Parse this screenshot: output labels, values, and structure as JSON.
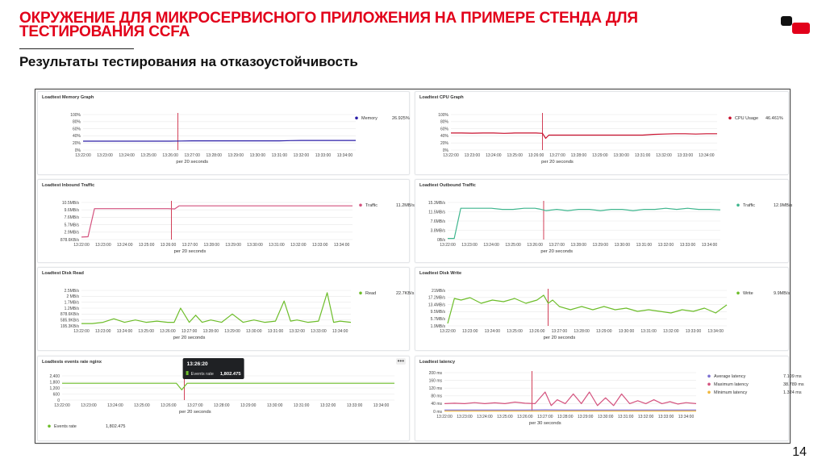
{
  "slide": {
    "title": "ОКРУЖЕНИЕ ДЛЯ МИКРОСЕРВИСНОГО ПРИЛОЖЕНИЯ НА ПРИМЕРЕ СТЕНДА ДЛЯ ТЕСТИРОВАНИЯ CCFA",
    "subtitle": "Результаты тестирования на отказоустойчивость",
    "page_number": "14"
  },
  "colors": {
    "title": "#e2001a",
    "memory": "#2c1fa8",
    "cpu": "#c8102e",
    "inbound": "#d4527e",
    "outbound": "#3fb68e",
    "disk": "#6dbd2a",
    "avg": "#7b6fd0",
    "max": "#d4527e",
    "min": "#f0b73c"
  },
  "chart_data": [
    {
      "id": "memory",
      "type": "line",
      "title": "Loadtest Memory Graph",
      "xlabel": "per 20 seconds",
      "yticks": [
        "100%",
        "80%",
        "60%",
        "40%",
        "20%",
        "0%"
      ],
      "ylim": [
        0,
        100
      ],
      "xticks": [
        "13:22:00",
        "13:23:00",
        "13:24:00",
        "13:25:00",
        "13:26:00",
        "13:27:00",
        "13:28:00",
        "13:29:00",
        "13:30:00",
        "13:31:00",
        "13:32:00",
        "13:33:00",
        "13:34:00"
      ],
      "marker": 4.35,
      "series": [
        {
          "name": "Memory",
          "value_label": "26.925%",
          "color": "#2c1fa8",
          "x": [
            0,
            0.5,
            1,
            1.5,
            2,
            2.5,
            3,
            3.5,
            4,
            4.5,
            5,
            5.5,
            6,
            6.5,
            7,
            7.5,
            8,
            8.5,
            9,
            9.5,
            10,
            10.5,
            11,
            11.5,
            12,
            12.5
          ],
          "y": [
            25,
            25,
            25,
            25,
            25,
            25,
            25,
            25,
            25,
            25.5,
            26,
            26,
            26,
            26,
            26,
            26,
            26,
            26,
            26,
            26.5,
            27,
            27,
            27,
            27,
            27,
            27
          ]
        }
      ]
    },
    {
      "id": "cpu",
      "type": "line",
      "title": "Loadtest CPU Graph",
      "xlabel": "per 20 seconds",
      "yticks": [
        "100%",
        "80%",
        "60%",
        "40%",
        "20%",
        "0%"
      ],
      "ylim": [
        0,
        100
      ],
      "xticks": [
        "13:22:00",
        "13:23:00",
        "13:24:00",
        "13:25:00",
        "13:26:00",
        "13:27:00",
        "13:28:00",
        "13:29:00",
        "13:30:00",
        "13:31:00",
        "13:32:00",
        "13:33:00",
        "13:34:00"
      ],
      "marker": 4.3,
      "series": [
        {
          "name": "CPU Usage",
          "value_label": "46.461%",
          "color": "#c8102e",
          "x": [
            0,
            0.5,
            1,
            1.5,
            2,
            2.5,
            3,
            3.5,
            4,
            4.3,
            4.45,
            4.6,
            5,
            5.5,
            6,
            6.5,
            7,
            7.5,
            8,
            8.5,
            9,
            9.5,
            10,
            10.5,
            11,
            11.5,
            12,
            12.5
          ],
          "y": [
            48,
            48,
            47.5,
            48,
            48,
            47,
            48,
            48,
            48,
            47,
            33,
            42,
            42,
            42,
            42,
            42,
            42,
            42,
            42,
            42,
            42,
            44,
            45,
            46,
            46,
            45,
            46,
            46
          ]
        }
      ]
    },
    {
      "id": "inbound",
      "type": "line",
      "title": "Loadtest Inbound Traffic",
      "xlabel": "per 20 seconds",
      "yticks": [
        "10.5MB/s",
        "9.6MB/s",
        "7.6MB/s",
        "5.7MB/s",
        "2.9MB/s",
        "878.6KB/s"
      ],
      "ylim": [
        0,
        12
      ],
      "xticks": [
        "13:22:00",
        "13:23:00",
        "13:24:00",
        "13:25:00",
        "13:26:00",
        "13:27:00",
        "13:28:00",
        "13:29:00",
        "13:30:00",
        "13:31:00",
        "13:32:00",
        "13:33:00",
        "13:34:00"
      ],
      "marker": 4.15,
      "series": [
        {
          "name": "Traffic",
          "value_label": "11.2MB/s",
          "color": "#d4527e",
          "x": [
            0,
            0.3,
            0.6,
            1,
            1.5,
            2,
            2.5,
            3,
            3.5,
            4,
            4.3,
            4.5,
            5,
            5.5,
            6,
            6.5,
            7,
            7.5,
            8,
            8.5,
            9,
            9.5,
            10,
            10.5,
            11,
            11.5,
            12,
            12.5
          ],
          "y": [
            0.8,
            0.9,
            10,
            10,
            10,
            10,
            10,
            10,
            10,
            10,
            9.9,
            10.9,
            10.9,
            10.9,
            10.9,
            10.9,
            10.9,
            10.9,
            10.9,
            10.9,
            10.9,
            10.9,
            10.9,
            10.9,
            10.9,
            10.9,
            10.9,
            10.9
          ]
        }
      ]
    },
    {
      "id": "outbound",
      "type": "line",
      "title": "Loadtest Outbound Traffic",
      "xlabel": "per 20 seconds",
      "yticks": [
        "15.3MB/s",
        "11.5MB/s",
        "7.6MB/s",
        "3.8MB/s",
        "0B/s"
      ],
      "ylim": [
        0,
        16
      ],
      "xticks": [
        "13:22:00",
        "13:23:00",
        "13:24:00",
        "13:25:00",
        "13:26:00",
        "13:27:00",
        "13:28:00",
        "13:29:00",
        "13:30:00",
        "13:31:00",
        "13:32:00",
        "13:33:00",
        "13:34:00"
      ],
      "marker": 4.4,
      "series": [
        {
          "name": "Traffic",
          "value_label": "12.9MB/s",
          "color": "#3fb68e",
          "x": [
            0,
            0.3,
            0.6,
            1,
            1.5,
            2,
            2.5,
            3,
            3.5,
            4,
            4.2,
            4.5,
            5,
            5.5,
            6,
            6.5,
            7,
            7.5,
            8,
            8.5,
            9,
            9.5,
            10,
            10.5,
            11,
            11.5,
            12,
            12.5
          ],
          "y": [
            0.5,
            0.5,
            13.5,
            13.5,
            13.5,
            13.5,
            13,
            13,
            13.5,
            13.5,
            13.2,
            12.5,
            13,
            12.5,
            13,
            13,
            12.5,
            13,
            13,
            12.5,
            13,
            13,
            13.5,
            13,
            13.5,
            13,
            13,
            12.8
          ]
        }
      ]
    },
    {
      "id": "disk-read",
      "type": "line",
      "title": "Loadtest Disk Read",
      "xlabel": "per 20 seconds",
      "yticks": [
        "2.5MB/s",
        "2 MB/s",
        "1.7MB/s",
        "1.2MB/s",
        "878.6KB/s",
        "585.9KB/s",
        "195.3KB/s"
      ],
      "ylim": [
        0,
        3
      ],
      "xticks": [
        "13:22:00",
        "13:23:00",
        "13:24:00",
        "13:25:00",
        "13:26:00",
        "13:27:00",
        "13:28:00",
        "13:29:00",
        "13:30:00",
        "13:31:00",
        "13:32:00",
        "13:33:00",
        "13:34:00"
      ],
      "marker": null,
      "series": [
        {
          "name": "Read",
          "value_label": "22.7KB/s",
          "color": "#6dbd2a",
          "x": [
            0,
            0.5,
            1,
            1.5,
            2,
            2.5,
            3,
            3.5,
            4,
            4.3,
            4.6,
            5,
            5.3,
            5.6,
            6,
            6.5,
            7,
            7.5,
            8,
            8.5,
            9,
            9.4,
            9.7,
            10,
            10.5,
            11,
            11.4,
            11.7,
            12,
            12.5
          ],
          "y": [
            0.2,
            0.2,
            0.3,
            0.6,
            0.3,
            0.5,
            0.3,
            0.4,
            0.3,
            0.3,
            1.5,
            0.3,
            0.9,
            0.3,
            0.5,
            0.3,
            1.0,
            0.3,
            0.5,
            0.3,
            0.4,
            2.1,
            0.4,
            0.5,
            0.3,
            0.4,
            2.8,
            0.3,
            0.4,
            0.3
          ]
        }
      ]
    },
    {
      "id": "disk-write",
      "type": "line",
      "title": "Loadtest Disk Write",
      "xlabel": "per 20 seconds",
      "yticks": [
        "21MB/s",
        "17.2MB/s",
        "13.4MB/s",
        "9.5MB/s",
        "5.7MB/s",
        "1.9MB/s"
      ],
      "ylim": [
        0,
        22
      ],
      "xticks": [
        "13:22:00",
        "13:23:00",
        "13:24:00",
        "13:25:00",
        "13:26:00",
        "13:27:00",
        "13:28:00",
        "13:29:00",
        "13:30:00",
        "13:31:00",
        "13:32:00",
        "13:33:00",
        "13:34:00"
      ],
      "marker": 4.5,
      "series": [
        {
          "name": "Write",
          "value_label": "9.9MB/s",
          "color": "#6dbd2a",
          "x": [
            0,
            0.3,
            0.6,
            1,
            1.5,
            2,
            2.5,
            3,
            3.5,
            4,
            4.3,
            4.5,
            4.7,
            5,
            5.5,
            6,
            6.5,
            7,
            7.5,
            8,
            8.5,
            9,
            9.5,
            10,
            10.5,
            11,
            11.5,
            12,
            12.5
          ],
          "y": [
            1.5,
            17,
            16,
            17.5,
            14,
            16,
            15,
            17,
            14,
            16,
            19,
            14,
            16,
            12,
            10,
            12,
            10,
            12,
            10,
            11,
            9,
            10,
            9,
            8,
            10,
            9,
            11,
            8,
            13
          ]
        }
      ]
    },
    {
      "id": "events-rate",
      "type": "line",
      "title": "Loadtests events rate nginx",
      "xlabel": "per 20 seconds",
      "yticks": [
        "2,400",
        "1,800",
        "1,200",
        "600",
        "0"
      ],
      "ylim": [
        0,
        2600
      ],
      "xticks": [
        "13:22:00",
        "13:23:00",
        "13:24:00",
        "13:25:00",
        "13:26:00",
        "13:27:00",
        "13:28:00",
        "13:29:00",
        "13:30:00",
        "13:31:00",
        "13:32:00",
        "13:33:00",
        "13:34:00"
      ],
      "marker": 4.6,
      "tooltip": {
        "time": "13:26:20",
        "label": "Events rate",
        "value": "1,802.475"
      },
      "series": [
        {
          "name": "Events rate",
          "value_label": "1,802.475",
          "color": "#6dbd2a",
          "x": [
            0,
            0.5,
            1,
            1.5,
            2,
            2.5,
            3,
            3.5,
            4,
            4.3,
            4.5,
            4.7,
            5,
            5.5,
            6,
            6.5,
            7,
            7.5,
            8,
            8.5,
            9,
            9.5,
            10,
            10.5,
            11,
            11.5,
            12,
            12.5
          ],
          "y": [
            1800,
            1800,
            1800,
            1800,
            1800,
            1800,
            1800,
            1800,
            1800,
            1800,
            1100,
            1800,
            1800,
            1800,
            1800,
            1800,
            1800,
            1800,
            1800,
            1800,
            1800,
            1800,
            1800,
            1800,
            1800,
            1800,
            1800,
            1800
          ]
        }
      ]
    },
    {
      "id": "latency",
      "type": "line",
      "title": "Loadtest latency",
      "xlabel": "per 30 seconds",
      "yticks": [
        "200 ms",
        "160 ms",
        "120 ms",
        "80 ms",
        "40 ms",
        "0 ms"
      ],
      "ylim": [
        0,
        200
      ],
      "xticks": [
        "13:22:00",
        "13:23:00",
        "13:24:00",
        "13:25:00",
        "13:26:00",
        "13:27:00",
        "13:28:00",
        "13:29:00",
        "13:30:00",
        "13:31:00",
        "13:32:00",
        "13:33:00",
        "13:34:00"
      ],
      "marker": 4.35,
      "series": [
        {
          "name": "Average latency",
          "value_label": "7.109 ms",
          "color": "#7b6fd0",
          "x": [
            0,
            1,
            2,
            3,
            4,
            5,
            6,
            7,
            8,
            9,
            10,
            11,
            12,
            12.5
          ],
          "y": [
            7,
            7,
            7,
            7,
            7,
            8,
            7,
            7,
            7,
            7,
            7,
            7,
            7,
            7
          ]
        },
        {
          "name": "Maximum latency",
          "value_label": "38.789 ms",
          "color": "#d4527e",
          "x": [
            0,
            0.5,
            1,
            1.5,
            2,
            2.5,
            3,
            3.5,
            4,
            4.5,
            5,
            5.3,
            5.6,
            6,
            6.4,
            6.8,
            7.2,
            7.6,
            8,
            8.4,
            8.8,
            9.2,
            9.6,
            10,
            10.4,
            10.8,
            11.2,
            11.6,
            12,
            12.5
          ],
          "y": [
            40,
            42,
            40,
            45,
            40,
            44,
            40,
            48,
            42,
            40,
            100,
            30,
            60,
            40,
            90,
            40,
            100,
            30,
            70,
            30,
            90,
            40,
            55,
            40,
            60,
            40,
            50,
            38,
            45,
            40
          ]
        },
        {
          "name": "Minimum latency",
          "value_label": "1.324 ms",
          "color": "#f0b73c",
          "x": [
            0,
            1,
            2,
            3,
            4,
            5,
            6,
            7,
            8,
            9,
            10,
            11,
            12,
            12.5
          ],
          "y": [
            1.3,
            1.3,
            1.3,
            1.3,
            1.3,
            1.3,
            1.3,
            1.3,
            1.3,
            1.3,
            1.3,
            1.3,
            1.3,
            1.3
          ]
        }
      ]
    }
  ]
}
